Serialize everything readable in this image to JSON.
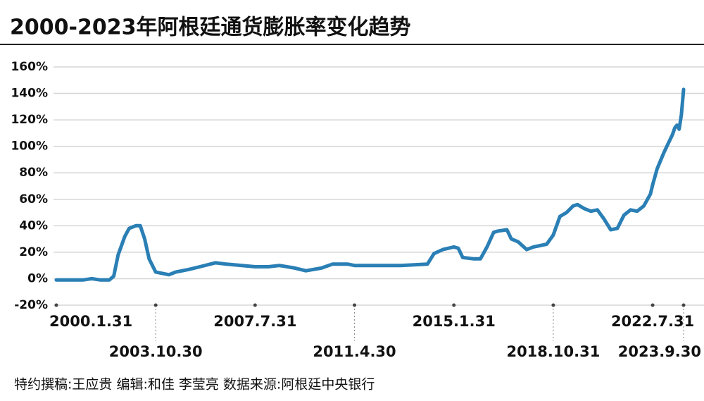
{
  "chart_data": {
    "type": "line",
    "title": "2000-2023年阿根廷通货膨胀率变化趋势",
    "source": "特约撰稿:王应贵   编辑:和佳 李莹亮   数据来源:阿根廷中央银行",
    "x": [
      "2000-01",
      "2000-06",
      "2001-01",
      "2001-05",
      "2001-09",
      "2002-01",
      "2002-03",
      "2002-05",
      "2002-08",
      "2002-10",
      "2003-01",
      "2003-03",
      "2003-05",
      "2003-07",
      "2003-10",
      "2004-01",
      "2004-04",
      "2004-07",
      "2005-01",
      "2005-06",
      "2006-01",
      "2006-06",
      "2007-01",
      "2007-07",
      "2008-01",
      "2008-06",
      "2009-01",
      "2009-06",
      "2010-01",
      "2010-06",
      "2011-01",
      "2011-04",
      "2012-01",
      "2013-01",
      "2014-01",
      "2014-04",
      "2014-08",
      "2015-01",
      "2015-03",
      "2015-05",
      "2015-10",
      "2016-01",
      "2016-04",
      "2016-07",
      "2016-09",
      "2017-01",
      "2017-03",
      "2017-06",
      "2017-10",
      "2018-01",
      "2018-04",
      "2018-07",
      "2018-10",
      "2019-01",
      "2019-04",
      "2019-07",
      "2019-09",
      "2019-12",
      "2020-03",
      "2020-06",
      "2020-09",
      "2020-12",
      "2021-03",
      "2021-06",
      "2021-09",
      "2021-12",
      "2022-03",
      "2022-06",
      "2022-07",
      "2022-09",
      "2022-12",
      "2023-02",
      "2023-04",
      "2023-05",
      "2023-06",
      "2023-07",
      "2023-08",
      "2023-09"
    ],
    "series": [
      {
        "color": "#2a7fb5",
        "values": [
          -1,
          -1,
          -1,
          0,
          -1,
          -1,
          2,
          18,
          32,
          38,
          40,
          40,
          30,
          15,
          5,
          4,
          3,
          5,
          7,
          9,
          12,
          11,
          10,
          9,
          9,
          10,
          8,
          6,
          8,
          11,
          11,
          10,
          10,
          10,
          11,
          19,
          22,
          24,
          23,
          16,
          15,
          15,
          24,
          35,
          36,
          37,
          30,
          28,
          22,
          24,
          25,
          26,
          33,
          47,
          50,
          55,
          56,
          53,
          51,
          52,
          45,
          37,
          38,
          48,
          52,
          51,
          55,
          64,
          71,
          83,
          95,
          102,
          109,
          114,
          116,
          113,
          124,
          143
        ]
      }
    ],
    "xlim": [
      "2000-01",
      "2023-09"
    ],
    "xticks": [
      {
        "value": "2000-01",
        "label": "2000.1.31"
      },
      {
        "value": "2003-10",
        "label": "2003.10.30"
      },
      {
        "value": "2007-07",
        "label": "2007.7.31"
      },
      {
        "value": "2011-04",
        "label": "2011.4.30"
      },
      {
        "value": "2015-01",
        "label": "2015.1.31"
      },
      {
        "value": "2018-10",
        "label": "2018.10.31"
      },
      {
        "value": "2022-07",
        "label": "2022.7.31"
      },
      {
        "value": "2023-09",
        "label": "2023.9.30"
      }
    ],
    "ylim": [
      -20,
      160
    ],
    "yticks": [
      {
        "value": -20,
        "label": "-20%"
      },
      {
        "value": 0,
        "label": "0%"
      },
      {
        "value": 20,
        "label": "20%"
      },
      {
        "value": 40,
        "label": "40%"
      },
      {
        "value": 60,
        "label": "60%"
      },
      {
        "value": 80,
        "label": "80%"
      },
      {
        "value": 100,
        "label": "100%"
      },
      {
        "value": 120,
        "label": "120%"
      },
      {
        "value": 140,
        "label": "140%"
      },
      {
        "value": 160,
        "label": "160%"
      }
    ],
    "grid": true
  }
}
